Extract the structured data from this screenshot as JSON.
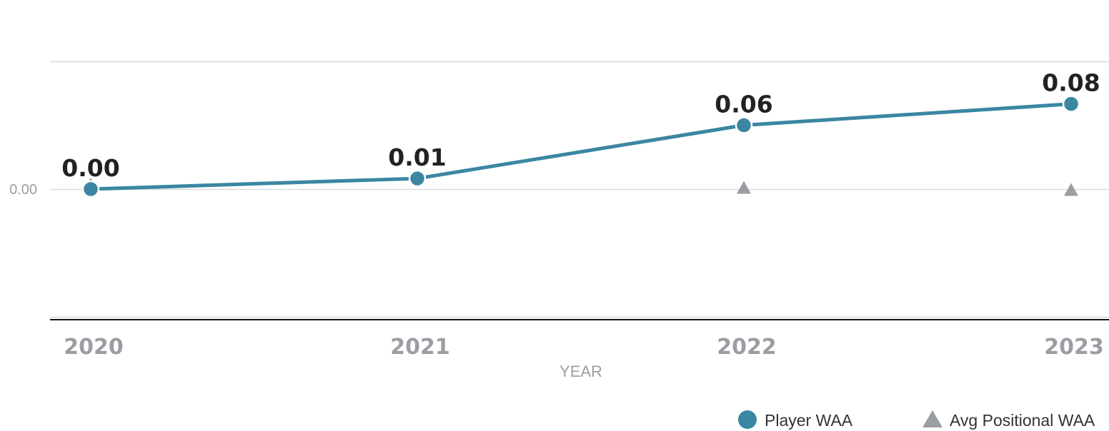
{
  "chart_data": {
    "type": "line",
    "categories": [
      "2020",
      "2021",
      "2022",
      "2023"
    ],
    "series": [
      {
        "name": "Player WAA",
        "values": [
          0.0,
          0.01,
          0.06,
          0.08
        ],
        "data_labels": [
          "0.00",
          "0.01",
          "0.06",
          "0.08"
        ],
        "color": "#3b86a3",
        "marker": "circle"
      },
      {
        "name": "Avg Positional WAA",
        "values": [
          0.004,
          0.011,
          0.001,
          -0.001
        ],
        "color": "#9a9ea3",
        "marker": "triangle"
      }
    ],
    "xlabel": "YEAR",
    "ylabel": "",
    "yticks": [
      {
        "value": 0.0,
        "label": "0.00"
      }
    ],
    "ylim": [
      -0.12,
      0.12
    ],
    "grid": true,
    "legend_position": "bottom-right"
  }
}
